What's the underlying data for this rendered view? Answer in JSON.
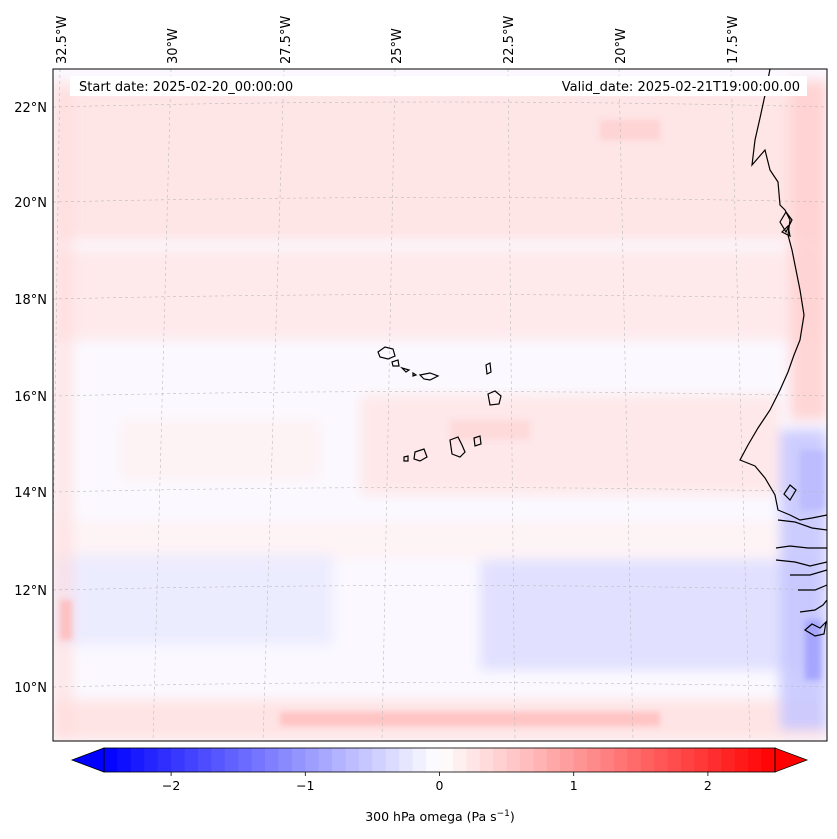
{
  "map": {
    "start_date_label": "Start date: 2025-02-20_00:00:00",
    "valid_date_label": "Valid_date: 2025-02-21T19:00:00.00",
    "longitude_labels": [
      "32.5°W",
      "30°W",
      "27.5°W",
      "25°W",
      "22.5°W",
      "20°W",
      "17.5°W"
    ],
    "latitude_labels": [
      "22°N",
      "20°N",
      "18°N",
      "16°N",
      "14°N",
      "12°N",
      "10°N"
    ],
    "field_colors": {
      "positive": "#ff0000",
      "negative": "#0000ff",
      "zero": "#ffffff",
      "coastline": "#000000"
    }
  },
  "colorbar": {
    "tick_labels": [
      "−2",
      "−1",
      "0",
      "1",
      "2"
    ],
    "tick_values": [
      -2,
      -1,
      0,
      1,
      2
    ],
    "range": [
      -2.5,
      2.5
    ],
    "label_main": "300 hPa omega (Pa s",
    "label_sup": "−1",
    "label_close": ")"
  }
}
